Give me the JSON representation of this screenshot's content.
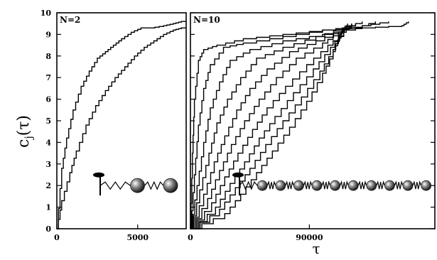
{
  "chart_data": [
    {
      "type": "line",
      "panel_label": "N=2",
      "ylabel": "c_j(τ)",
      "ylim": [
        0,
        10
      ],
      "yticks": [
        0,
        1,
        2,
        3,
        4,
        5,
        6,
        7,
        8,
        9,
        10
      ],
      "xlim": [
        0,
        8000
      ],
      "xticks": [
        0,
        5000
      ],
      "xtick_labels": [
        "0",
        "5000"
      ],
      "series": [
        {
          "x": [
            0,
            300,
            600,
            1000,
            1500,
            2000,
            2500,
            3000,
            3500,
            4000,
            4600,
            5200,
            5800,
            6600,
            7200,
            7700,
            8000
          ],
          "y": [
            0,
            2.8,
            4.2,
            5.5,
            6.6,
            7.3,
            7.9,
            8.2,
            8.5,
            8.8,
            9.1,
            9.3,
            9.3,
            9.4,
            9.5,
            9.6,
            9.6
          ]
        },
        {
          "x": [
            0,
            300,
            800,
            1200,
            1800,
            2400,
            3000,
            3600,
            4200,
            4800,
            5400,
            6000,
            6600,
            7200,
            7700,
            8000
          ],
          "y": [
            0,
            1.3,
            2.6,
            3.6,
            4.8,
            5.7,
            6.4,
            7.0,
            7.5,
            8.0,
            8.4,
            8.7,
            9.0,
            9.2,
            9.3,
            9.3
          ]
        }
      ],
      "inset": {
        "type": "polymer-chain",
        "beads": 2
      }
    },
    {
      "type": "line",
      "panel_label": "N=10",
      "xlabel": "τ",
      "ylim": [
        0,
        10
      ],
      "xlim": [
        0,
        185000
      ],
      "xticks": [
        0,
        90000
      ],
      "xtick_labels": [
        "0",
        "90000"
      ],
      "series": [
        {
          "x": [
            0,
            1500,
            3000,
            6000,
            10000,
            20000,
            40000,
            70000,
            100000,
            130000,
            160000,
            165000
          ],
          "y": [
            0,
            3.5,
            6.0,
            7.8,
            8.3,
            8.5,
            8.8,
            9.0,
            9.2,
            9.3,
            9.4,
            9.6
          ]
        },
        {
          "x": [
            0,
            3000,
            6000,
            10000,
            15000,
            25000,
            40000,
            70000,
            100000,
            130000,
            150000
          ],
          "y": [
            0,
            2.5,
            4.8,
            6.5,
            7.6,
            8.4,
            8.6,
            8.9,
            9.2,
            9.4,
            9.6
          ]
        },
        {
          "x": [
            0,
            5000,
            10000,
            15000,
            22000,
            30000,
            45000,
            70000,
            100000,
            125000,
            140000
          ],
          "y": [
            0,
            2.0,
            4.0,
            5.6,
            6.8,
            7.8,
            8.3,
            8.7,
            9.0,
            9.3,
            9.6
          ]
        },
        {
          "x": [
            0,
            7000,
            14000,
            20000,
            28000,
            38000,
            50000,
            70000,
            95000,
            115000,
            130000
          ],
          "y": [
            0,
            1.8,
            3.5,
            4.9,
            6.0,
            7.0,
            7.9,
            8.4,
            8.9,
            9.3,
            9.6
          ]
        },
        {
          "x": [
            0,
            10000,
            18000,
            26000,
            35000,
            45000,
            58000,
            75000,
            95000,
            115000,
            125000
          ],
          "y": [
            0,
            1.6,
            3.1,
            4.3,
            5.5,
            6.5,
            7.4,
            8.2,
            8.7,
            9.2,
            9.5
          ]
        },
        {
          "x": [
            0,
            13000,
            22000,
            31000,
            41000,
            52000,
            65000,
            80000,
            100000,
            112000,
            122000
          ],
          "y": [
            0,
            1.4,
            2.7,
            3.9,
            5.0,
            6.0,
            7.0,
            7.9,
            8.6,
            9.1,
            9.5
          ]
        },
        {
          "x": [
            0,
            16000,
            26000,
            36000,
            47000,
            58000,
            72000,
            88000,
            104000,
            116000,
            122000
          ],
          "y": [
            0,
            1.2,
            2.4,
            3.5,
            4.6,
            5.6,
            6.6,
            7.6,
            8.5,
            9.1,
            9.5
          ]
        },
        {
          "x": [
            0,
            19000,
            30000,
            41000,
            52000,
            64000,
            78000,
            93000,
            106000,
            116000,
            119000
          ],
          "y": [
            0,
            1.0,
            2.1,
            3.1,
            4.2,
            5.2,
            6.3,
            7.4,
            8.4,
            9.2,
            9.5
          ]
        },
        {
          "x": [
            0,
            22000,
            34000,
            45000,
            57000,
            70000,
            84000,
            98000,
            108000,
            114000,
            117000
          ],
          "y": [
            0,
            0.9,
            1.9,
            2.8,
            3.9,
            5.0,
            6.1,
            7.3,
            8.3,
            9.1,
            9.4
          ]
        },
        {
          "x": [
            0,
            26000,
            38000,
            50000,
            62000,
            75000,
            88000,
            100000,
            108000,
            113000,
            117000
          ],
          "y": [
            0,
            0.7,
            1.6,
            2.6,
            3.6,
            4.7,
            5.9,
            7.2,
            8.2,
            9.0,
            9.4
          ]
        }
      ],
      "inset": {
        "type": "polymer-chain",
        "beads": 10
      }
    }
  ]
}
